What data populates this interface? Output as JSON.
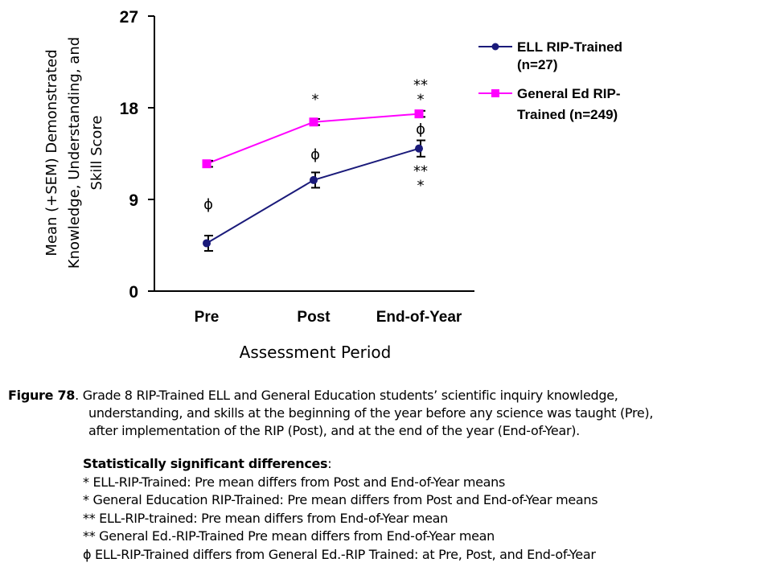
{
  "chart_data": {
    "type": "line",
    "categories": [
      "Pre",
      "Post",
      "End-of-Year"
    ],
    "xlabel": "Assessment Period",
    "ylabel_lines": [
      "Mean (+SEM) Demonstrated",
      "Knowledge, Understanding, and",
      "Skill Score"
    ],
    "ylim": [
      0,
      27
    ],
    "yticks": [
      "0",
      "9",
      "18",
      "27"
    ],
    "grid": false,
    "legend_position": "right",
    "series": [
      {
        "name_lines": [
          "ELL RIP-Trained",
          "(n=27)"
        ],
        "color": "#1a1a7a",
        "marker": "circle",
        "values": [
          4.7,
          10.9,
          14.0
        ],
        "sem": [
          0.75,
          0.75,
          0.8
        ]
      },
      {
        "name_lines": [
          "General Ed RIP-",
          "Trained (n=249)"
        ],
        "color": "#ff00ff",
        "marker": "square",
        "values": [
          12.5,
          16.6,
          17.4
        ],
        "sem": [
          0.3,
          0.3,
          0.3
        ]
      }
    ],
    "annotations": [
      {
        "text": "ɸ",
        "category": "Pre",
        "y": 8.6
      },
      {
        "text": "*",
        "category": "Post",
        "y": 18.9
      },
      {
        "text": "ɸ",
        "category": "Post",
        "y": 13.5
      },
      {
        "text": "**",
        "category": "End-of-Year",
        "y": 19.8
      },
      {
        "text": "*",
        "category": "End-of-Year",
        "y": 18.9
      },
      {
        "text": "ɸ",
        "category": "End-of-Year",
        "y": 16.0
      },
      {
        "text": "**",
        "category": "End-of-Year",
        "y": 11.9
      },
      {
        "text": "*",
        "category": "End-of-Year",
        "y": 10.8
      }
    ]
  },
  "caption": {
    "label": "Figure 78",
    "line1": ". Grade 8 RIP-Trained ELL and General Education students’ scientific inquiry knowledge,",
    "line2": "understanding,  and skills at the beginning of the year before any science was taught (Pre),",
    "line3": "after implementation of the RIP (Post), and at the end of the year (End-of-Year)."
  },
  "notes": {
    "heading": "Statistically significant differences",
    "heading_suffix": ":",
    "items": [
      "* ELL-RIP-Trained: Pre mean differs from Post and End-of-Year means",
      "* General Education RIP-Trained: Pre mean differs from Post and End-of-Year means",
      "** ELL-RIP-trained: Pre mean differs from End-of-Year mean",
      "** General Ed.-RIP-Trained Pre mean differs from End-of-Year mean",
      "ɸ ELL-RIP-Trained differs from General Ed.-RIP Trained: at Pre, Post, and End-of-Year"
    ]
  }
}
